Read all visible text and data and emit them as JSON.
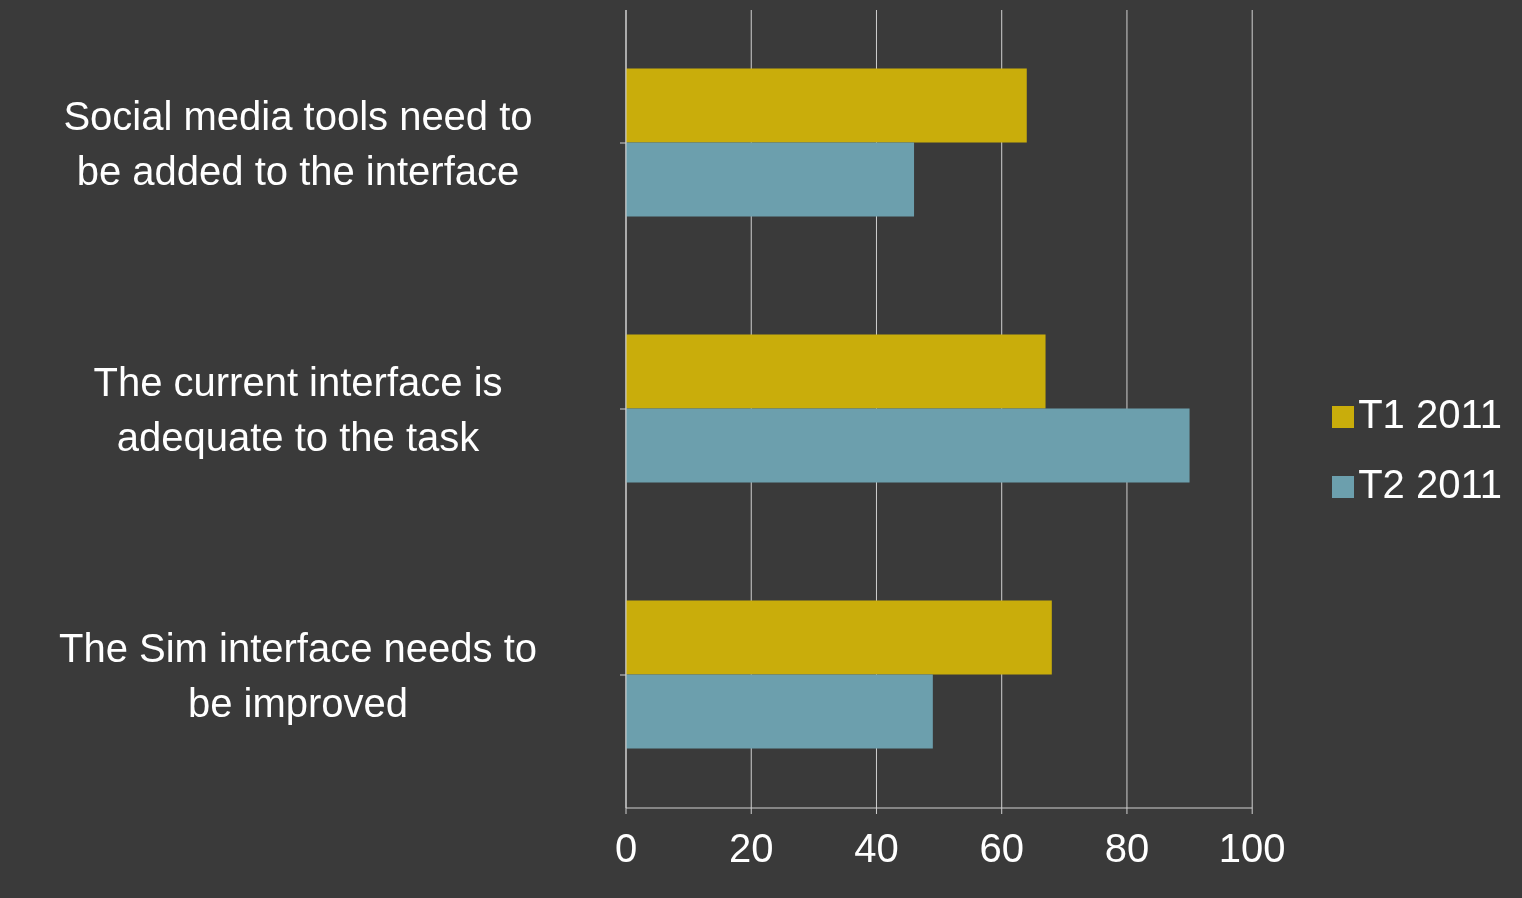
{
  "chart_data": {
    "type": "bar",
    "orientation": "horizontal",
    "categories": [
      "Social media tools need to be added to the interface",
      "The current interface is adequate to the task",
      "The Sim interface needs to be improved"
    ],
    "series": [
      {
        "name": "T1 2011",
        "color": "#c9ad0b",
        "values": [
          64,
          67,
          68
        ]
      },
      {
        "name": "T2 2011",
        "color": "#6c9fad",
        "values": [
          46,
          90,
          49
        ]
      }
    ],
    "xlim": [
      0,
      100
    ],
    "xticks": [
      0,
      20,
      40,
      60,
      80,
      100
    ],
    "grid": "x",
    "legend": "right"
  }
}
